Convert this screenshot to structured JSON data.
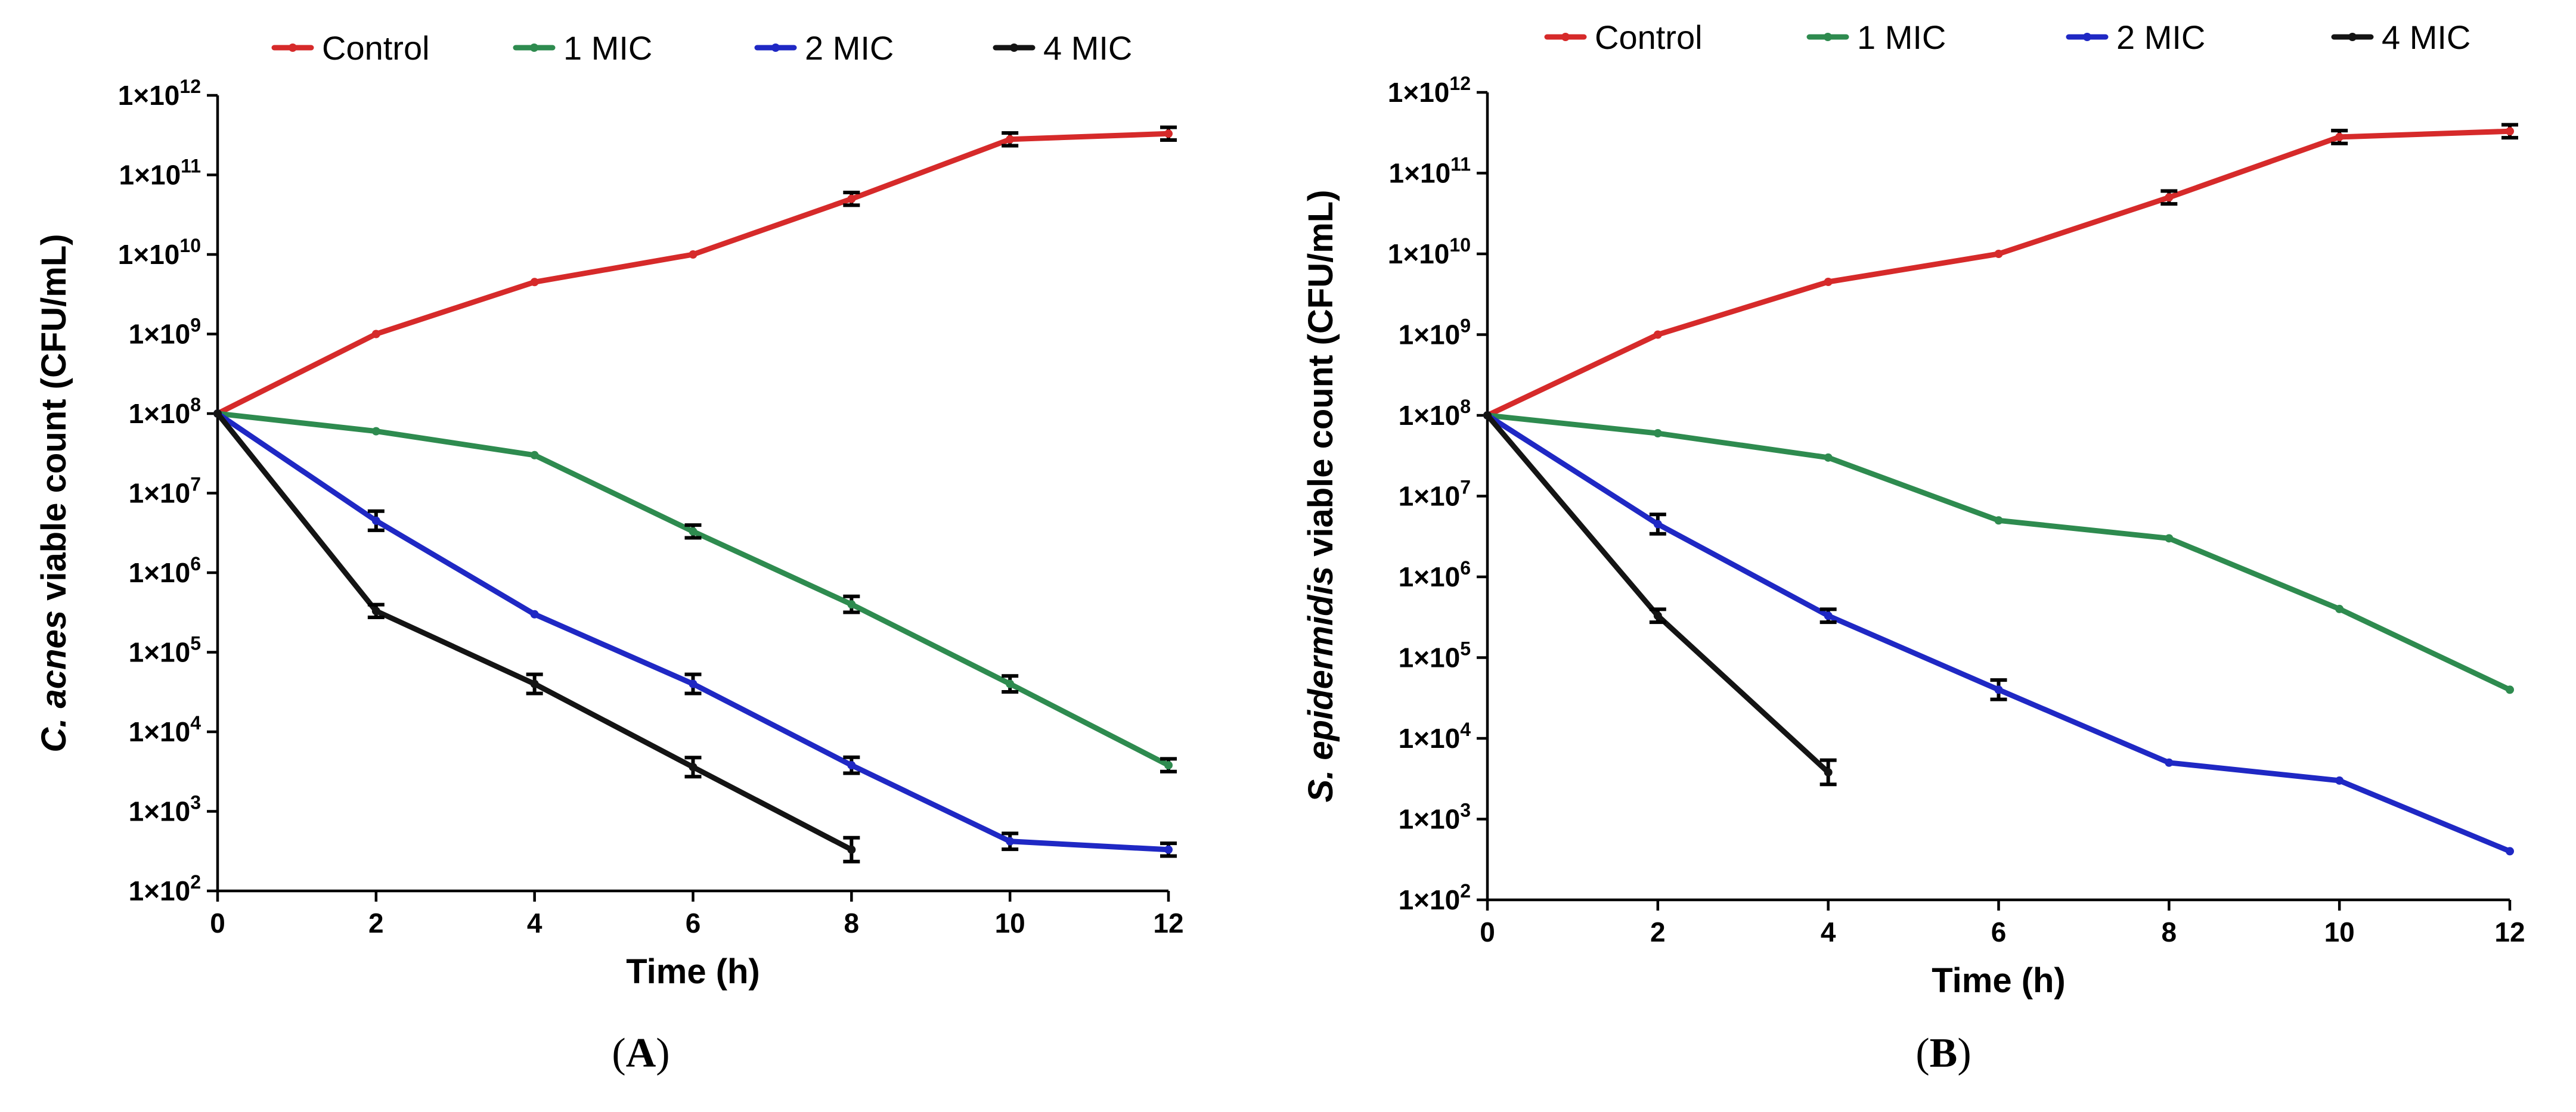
{
  "series_colors": {
    "Control": "#d62a2a",
    "1 MIC": "#2e8b4f",
    "2 MIC": "#1f28c4",
    "4 MIC": "#141414"
  },
  "legend": [
    "Control",
    "1 MIC",
    "2 MIC",
    "4 MIC"
  ],
  "y_tick_base": "1×10",
  "y_tick_exponents": [
    "2",
    "3",
    "4",
    "5",
    "6",
    "7",
    "8",
    "9",
    "10",
    "11",
    "12"
  ],
  "x_tick_labels": [
    "0",
    "2",
    "4",
    "6",
    "8",
    "10",
    "12"
  ],
  "chart_data": [
    {
      "type": "line",
      "panel_label": "A",
      "xlabel": "Time (h)",
      "ylabel_italic": "C. acnes",
      "ylabel_rest": " viable count (CFU/mL)",
      "y_scale": "log10",
      "ylim": [
        100,
        1000000000000
      ],
      "xlim": [
        0,
        12
      ],
      "legend_position": "top",
      "series": [
        {
          "name": "Control",
          "x": [
            0,
            2,
            4,
            6,
            8,
            10,
            12
          ],
          "values": [
            100000000,
            1000000000,
            4500000000,
            10000000000,
            50000000000,
            280000000000,
            330000000000
          ],
          "errors_log": [
            0,
            0,
            0,
            0,
            0.08,
            0.08,
            0.08
          ]
        },
        {
          "name": "1 MIC",
          "x": [
            0,
            2,
            4,
            6,
            8,
            10,
            12
          ],
          "values": [
            100000000,
            60000000,
            30000000,
            3300000,
            400000,
            40000,
            3800
          ],
          "errors_log": [
            0,
            0,
            0,
            0.08,
            0.1,
            0.1,
            0.08
          ]
        },
        {
          "name": "2 MIC",
          "x": [
            0,
            2,
            4,
            6,
            8,
            10,
            12
          ],
          "values": [
            100000000,
            4500000,
            300000,
            40000,
            3800,
            420,
            330
          ],
          "errors_log": [
            0,
            0.12,
            0,
            0.12,
            0.1,
            0.1,
            0.08
          ]
        },
        {
          "name": "4 MIC",
          "x": [
            0,
            2,
            4,
            6,
            8
          ],
          "values": [
            100000000,
            330000,
            40000,
            3600,
            330
          ],
          "errors_log": [
            0,
            0.08,
            0.12,
            0.12,
            0.15
          ]
        }
      ]
    },
    {
      "type": "line",
      "panel_label": "B",
      "xlabel": "Time (h)",
      "ylabel_italic": "S. epidermidis",
      "ylabel_rest": " viable count (CFU/mL)",
      "y_scale": "log10",
      "ylim": [
        100,
        1000000000000
      ],
      "xlim": [
        0,
        12
      ],
      "legend_position": "top",
      "series": [
        {
          "name": "Control",
          "x": [
            0,
            2,
            4,
            6,
            8,
            10,
            12
          ],
          "values": [
            100000000,
            1000000000,
            4500000000,
            10000000000,
            50000000000,
            280000000000,
            330000000000
          ],
          "errors_log": [
            0,
            0,
            0,
            0,
            0.08,
            0.08,
            0.08
          ]
        },
        {
          "name": "1 MIC",
          "x": [
            0,
            2,
            4,
            6,
            8,
            10,
            12
          ],
          "values": [
            100000000,
            60000000,
            30000000,
            5000000,
            3000000,
            400000,
            40000
          ],
          "errors_log": [
            0,
            0,
            0,
            0,
            0,
            0,
            0
          ]
        },
        {
          "name": "2 MIC",
          "x": [
            0,
            2,
            4,
            6,
            8,
            10,
            12
          ],
          "values": [
            100000000,
            4500000,
            330000,
            40000,
            5000,
            3000,
            400
          ],
          "errors_log": [
            0,
            0.12,
            0.08,
            0.12,
            0,
            0,
            0
          ]
        },
        {
          "name": "4 MIC",
          "x": [
            0,
            2,
            4
          ],
          "values": [
            100000000,
            330000,
            3800
          ],
          "errors_log": [
            0,
            0.08,
            0.15
          ]
        }
      ]
    }
  ]
}
